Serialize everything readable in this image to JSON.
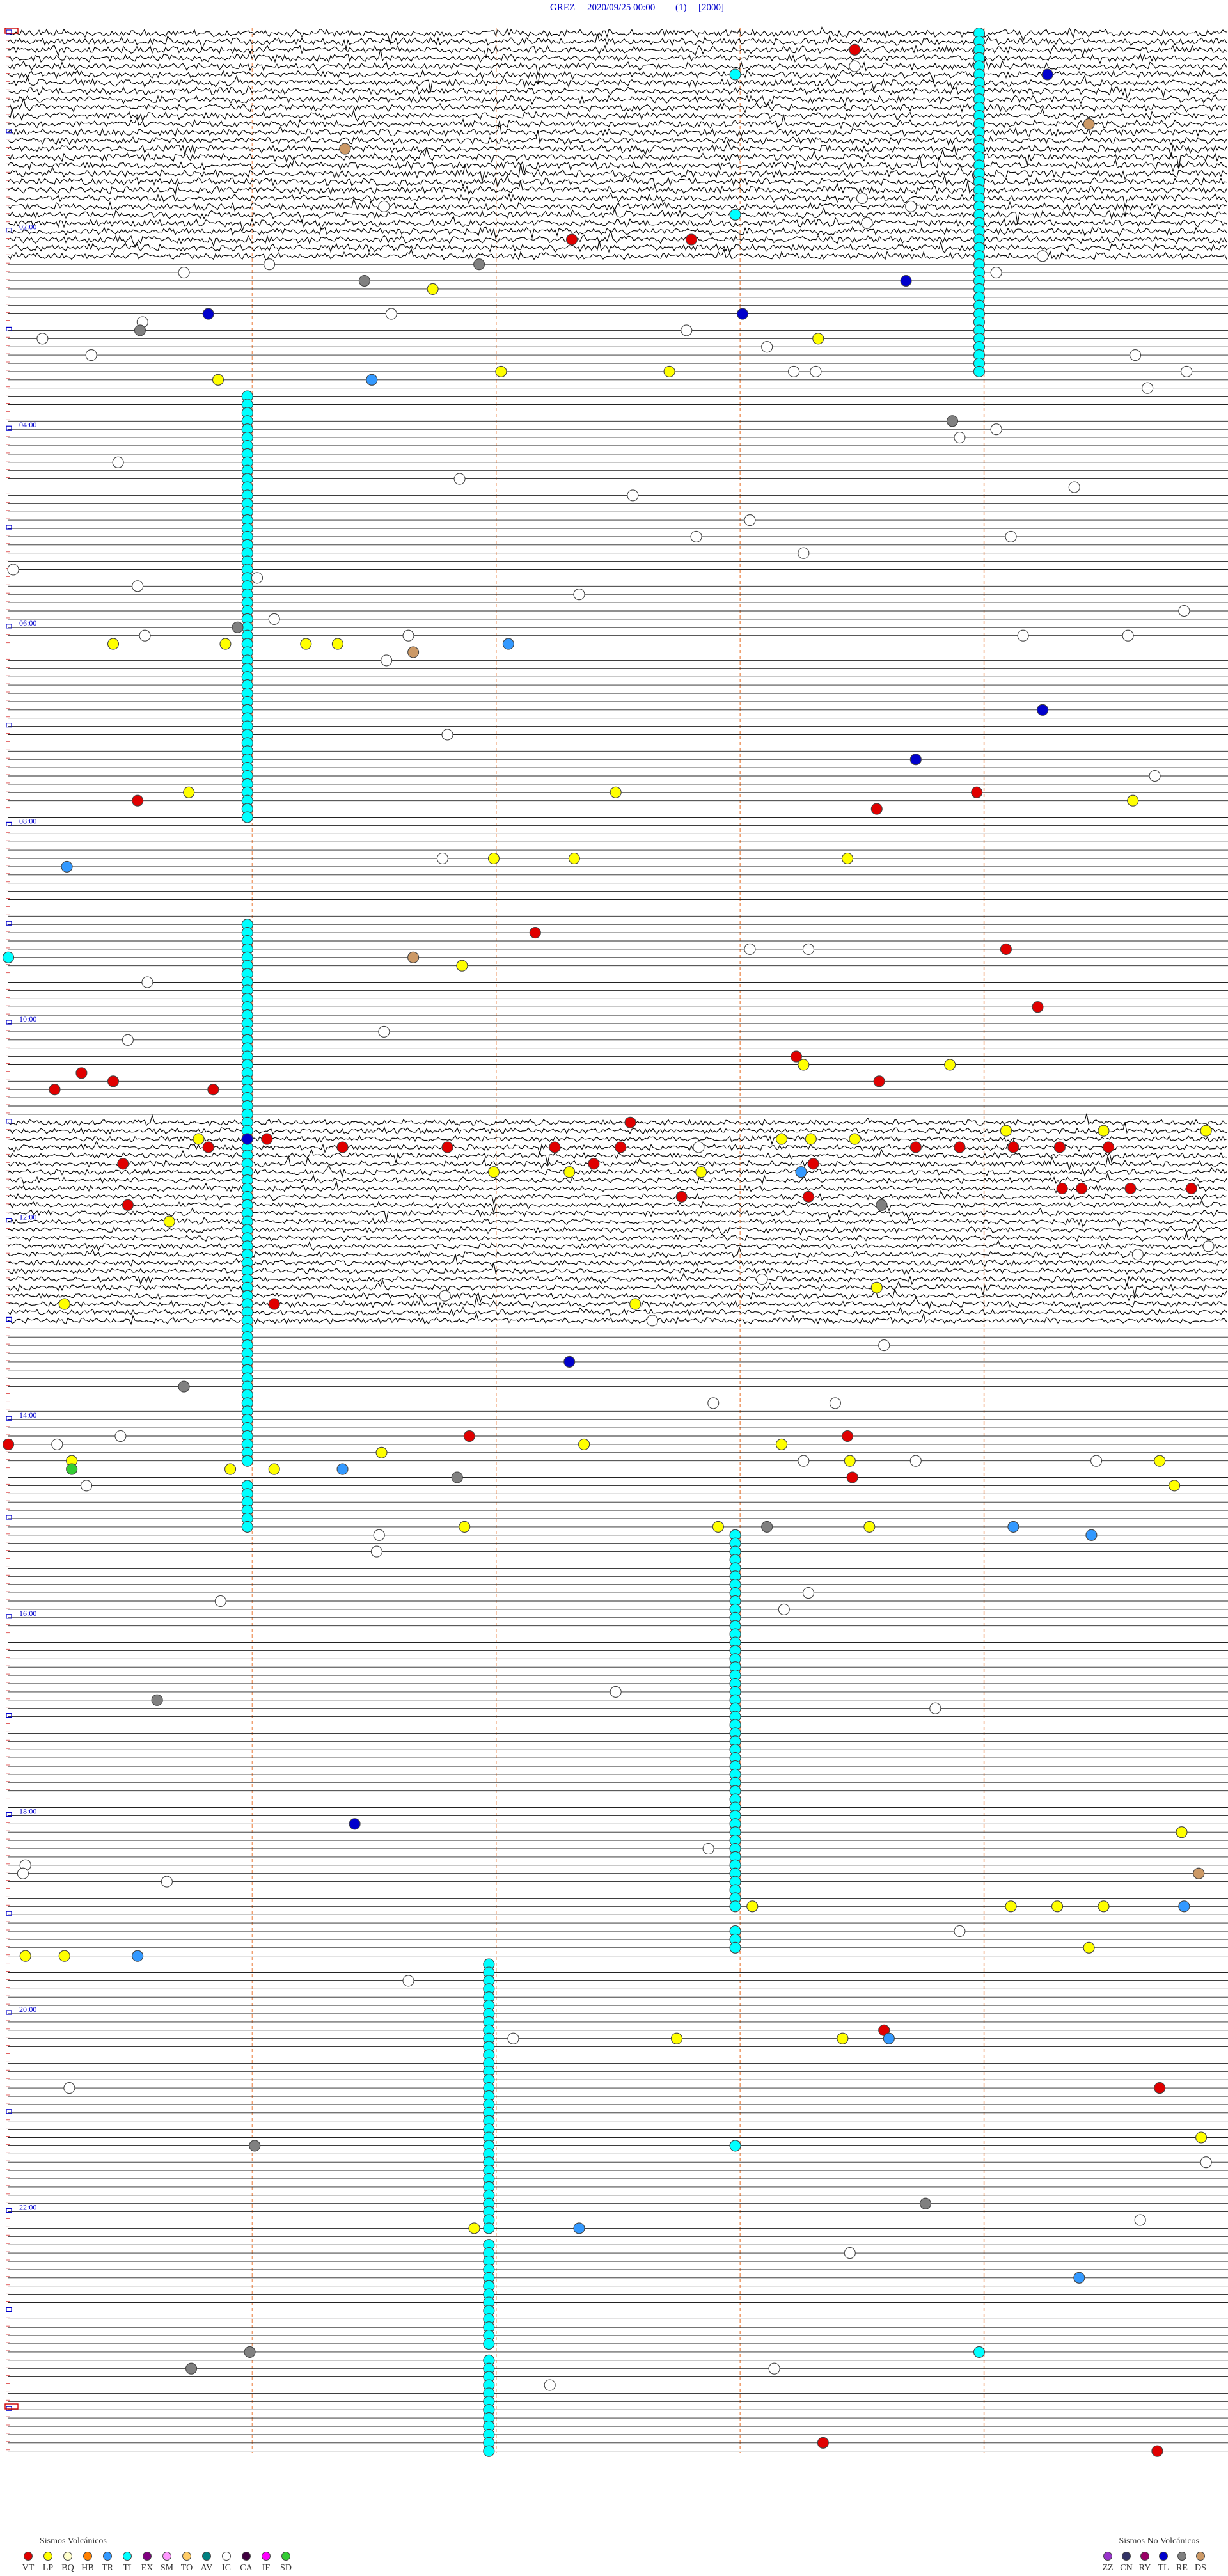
{
  "header": {
    "station": "GREZ",
    "datetime": "2020/09/25 00:00",
    "channel": "(1)",
    "scale": "[2000]"
  },
  "hour_labels": [
    "02:00",
    "04:00",
    "06:00",
    "08:00",
    "10:00",
    "12:00",
    "14:00",
    "16:00",
    "18:00",
    "20:00",
    "22:00"
  ],
  "legend": {
    "volcanic": {
      "title": "Sismos Volcánicos",
      "items": [
        {
          "code": "VT",
          "color": "#e00000"
        },
        {
          "code": "LP",
          "color": "#ffff00"
        },
        {
          "code": "BQ",
          "color": "#ffffcc"
        },
        {
          "code": "HB",
          "color": "#ff8000"
        },
        {
          "code": "TR",
          "color": "#3399ff"
        },
        {
          "code": "TI",
          "color": "#00ffff"
        },
        {
          "code": "EX",
          "color": "#800080"
        },
        {
          "code": "SM",
          "color": "#ff99ff"
        },
        {
          "code": "TO",
          "color": "#ffcc66"
        },
        {
          "code": "AV",
          "color": "#008080"
        },
        {
          "code": "IC",
          "color": "#ffffff"
        },
        {
          "code": "CA",
          "color": "#400040"
        },
        {
          "code": "IF",
          "color": "#ff00ff"
        },
        {
          "code": "SD",
          "color": "#33cc33"
        }
      ]
    },
    "nonvolcanic": {
      "title": "Sismos No Volcánicos",
      "items": [
        {
          "code": "ZZ",
          "color": "#9933cc"
        },
        {
          "code": "CN",
          "color": "#333366"
        },
        {
          "code": "RY",
          "color": "#990066"
        },
        {
          "code": "TL",
          "color": "#0000cc"
        },
        {
          "code": "RE",
          "color": "#808080"
        },
        {
          "code": "DS",
          "color": "#cc9966"
        }
      ]
    }
  },
  "sequences": {
    "TI": [
      [
        3.98,
        0,
        41
      ],
      [
        0.98,
        44,
        95
      ],
      [
        0.98,
        108,
        173
      ],
      [
        0.98,
        176,
        181
      ],
      [
        2.98,
        182,
        227
      ],
      [
        2.98,
        230,
        232
      ],
      [
        1.97,
        234,
        266
      ],
      [
        1.97,
        268,
        280
      ],
      [
        1.97,
        282,
        293
      ]
    ]
  },
  "events": {
    "VT": [
      [
        2,
        3.47
      ],
      [
        25,
        2.31
      ],
      [
        25,
        2.8
      ],
      [
        93,
        0.53
      ],
      [
        94,
        3.56
      ],
      [
        92,
        3.97
      ],
      [
        109,
        2.16
      ],
      [
        111,
        4.09
      ],
      [
        118,
        4.22
      ],
      [
        124,
        3.23
      ],
      [
        126,
        0.3
      ],
      [
        127,
        0.43
      ],
      [
        128,
        0.19
      ],
      [
        128,
        0.84
      ],
      [
        127,
        3.57
      ],
      [
        132,
        2.55
      ],
      [
        154,
        1.09
      ],
      [
        170,
        1.89
      ],
      [
        170,
        3.44
      ],
      [
        175,
        3.46
      ],
      [
        242,
        3.59
      ],
      [
        249,
        4.72
      ],
      [
        292,
        3.34
      ],
      [
        293,
        4.71
      ],
      [
        171,
        0.0
      ],
      [
        137,
        3.3
      ],
      [
        137,
        0.47
      ],
      [
        142,
        0.49
      ],
      [
        141,
        2.76
      ],
      [
        141,
        3.28
      ],
      [
        137,
        2.4
      ],
      [
        135,
        0.82
      ],
      [
        135,
        1.37
      ],
      [
        135,
        1.8
      ],
      [
        135,
        2.24
      ],
      [
        135,
        2.51
      ],
      [
        135,
        3.72
      ],
      [
        135,
        3.9
      ],
      [
        135,
        4.12
      ],
      [
        135,
        4.31
      ],
      [
        135,
        4.51
      ],
      [
        140,
        4.32
      ],
      [
        140,
        4.4
      ],
      [
        140,
        4.6
      ],
      [
        140,
        4.85
      ],
      [
        134,
        1.06
      ]
    ],
    "LP": [
      [
        31,
        1.74
      ],
      [
        37,
        3.32
      ],
      [
        42,
        0.86
      ],
      [
        41,
        2.02
      ],
      [
        41,
        2.71
      ],
      [
        74,
        0.43
      ],
      [
        74,
        0.89
      ],
      [
        74,
        1.22
      ],
      [
        74,
        1.35
      ],
      [
        92,
        0.74
      ],
      [
        92,
        2.49
      ],
      [
        93,
        4.61
      ],
      [
        100,
        1.99
      ],
      [
        100,
        2.32
      ],
      [
        100,
        3.44
      ],
      [
        113,
        1.86
      ],
      [
        125,
        3.26
      ],
      [
        125,
        3.86
      ],
      [
        133,
        4.09
      ],
      [
        133,
        4.49
      ],
      [
        133,
        4.91
      ],
      [
        134,
        0.78
      ],
      [
        134,
        3.17
      ],
      [
        134,
        3.29
      ],
      [
        134,
        3.47
      ],
      [
        138,
        1.99
      ],
      [
        138,
        2.3
      ],
      [
        138,
        2.84
      ],
      [
        144,
        0.66
      ],
      [
        152,
        3.56
      ],
      [
        154,
        0.23
      ],
      [
        154,
        2.57
      ],
      [
        172,
        1.53
      ],
      [
        171,
        2.36
      ],
      [
        171,
        3.17
      ],
      [
        173,
        3.45
      ],
      [
        173,
        4.72
      ],
      [
        176,
        4.78
      ],
      [
        174,
        0.91
      ],
      [
        174,
        1.09
      ],
      [
        173,
        0.26
      ],
      [
        181,
        1.87
      ],
      [
        181,
        2.91
      ],
      [
        181,
        3.53
      ],
      [
        218,
        4.81
      ],
      [
        227,
        3.05
      ],
      [
        227,
        4.11
      ],
      [
        227,
        4.3
      ],
      [
        227,
        4.49
      ],
      [
        232,
        4.43
      ],
      [
        233,
        0.07
      ],
      [
        233,
        0.23
      ],
      [
        243,
        2.74
      ],
      [
        243,
        3.42
      ],
      [
        255,
        4.89
      ],
      [
        266,
        1.91
      ]
    ],
    "IC": [
      [
        29,
        0.72
      ],
      [
        28,
        1.07
      ],
      [
        35,
        0.55
      ],
      [
        34,
        1.57
      ],
      [
        37,
        0.14
      ],
      [
        39,
        0.34
      ],
      [
        36,
        2.78
      ],
      [
        38,
        3.11
      ],
      [
        41,
        3.22
      ],
      [
        41,
        3.31
      ],
      [
        39,
        4.62
      ],
      [
        41,
        4.83
      ],
      [
        43,
        4.67
      ],
      [
        29,
        4.05
      ],
      [
        27,
        4.24
      ],
      [
        52,
        0.45
      ],
      [
        54,
        1.85
      ],
      [
        56,
        2.56
      ],
      [
        55,
        4.37
      ],
      [
        59,
        3.04
      ],
      [
        61,
        2.82
      ],
      [
        61,
        4.11
      ],
      [
        63,
        3.26
      ],
      [
        67,
        0.53
      ],
      [
        65,
        0.02
      ],
      [
        66,
        1.02
      ],
      [
        68,
        2.34
      ],
      [
        70,
        4.82
      ],
      [
        71,
        1.09
      ],
      [
        73,
        0.56
      ],
      [
        73,
        1.64
      ],
      [
        73,
        4.16
      ],
      [
        73,
        4.59
      ],
      [
        76,
        1.55
      ],
      [
        85,
        1.8
      ],
      [
        90,
        4.7
      ],
      [
        100,
        1.78
      ],
      [
        111,
        3.04
      ],
      [
        111,
        3.28
      ],
      [
        115,
        0.57
      ],
      [
        121,
        1.54
      ],
      [
        122,
        0.49
      ],
      [
        135,
        2.83
      ],
      [
        148,
        4.63
      ],
      [
        147,
        4.92
      ],
      [
        151,
        3.09
      ],
      [
        153,
        1.79
      ],
      [
        156,
        2.64
      ],
      [
        159,
        3.59
      ],
      [
        166,
        2.89
      ],
      [
        166,
        3.39
      ],
      [
        170,
        0.46
      ],
      [
        171,
        0.2
      ],
      [
        173,
        3.26
      ],
      [
        173,
        3.72
      ],
      [
        173,
        4.46
      ],
      [
        176,
        0.32
      ],
      [
        182,
        1.52
      ],
      [
        184,
        1.51
      ],
      [
        189,
        3.28
      ],
      [
        191,
        3.18
      ],
      [
        190,
        0.87
      ],
      [
        201,
        2.49
      ],
      [
        203,
        3.8
      ],
      [
        220,
        2.87
      ],
      [
        222,
        0.07
      ],
      [
        223,
        0.06
      ],
      [
        224,
        0.65
      ],
      [
        230,
        3.9
      ],
      [
        236,
        1.64
      ],
      [
        243,
        2.07
      ],
      [
        249,
        0.25
      ],
      [
        258,
        4.91
      ],
      [
        265,
        4.64
      ],
      [
        269,
        3.45
      ],
      [
        285,
        2.22
      ],
      [
        283,
        3.14
      ],
      [
        49,
        3.9
      ],
      [
        48,
        4.05
      ],
      [
        20,
        3.5
      ],
      [
        21,
        3.7
      ],
      [
        21,
        1.54
      ],
      [
        4,
        3.47
      ],
      [
        23,
        3.52
      ]
    ],
    "TR": [
      [
        42,
        1.49
      ],
      [
        74,
        2.05
      ],
      [
        101,
        0.24
      ],
      [
        138,
        3.25
      ],
      [
        174,
        1.37
      ],
      [
        181,
        4.12
      ],
      [
        182,
        4.44
      ],
      [
        227,
        4.82
      ],
      [
        233,
        0.53
      ],
      [
        243,
        3.61
      ],
      [
        266,
        2.34
      ],
      [
        272,
        4.39
      ]
    ],
    "TI": [
      [
        5,
        2.98
      ],
      [
        22,
        2.98
      ],
      [
        256,
        2.98
      ],
      [
        281,
        3.98
      ],
      [
        112,
        0.0
      ]
    ],
    "TL": [
      [
        5,
        4.26
      ],
      [
        30,
        3.68
      ],
      [
        34,
        0.82
      ],
      [
        34,
        3.01
      ],
      [
        82,
        4.24
      ],
      [
        88,
        3.72
      ],
      [
        161,
        2.3
      ],
      [
        217,
        1.42
      ],
      [
        134,
        0.98
      ]
    ],
    "RE": [
      [
        30,
        1.46
      ],
      [
        36,
        0.54
      ],
      [
        28,
        1.93
      ],
      [
        47,
        3.87
      ],
      [
        72,
        0.94
      ],
      [
        164,
        0.72
      ],
      [
        175,
        1.84
      ],
      [
        181,
        3.11
      ],
      [
        202,
        0.61
      ],
      [
        256,
        1.01
      ],
      [
        263,
        3.76
      ],
      [
        281,
        0.99
      ],
      [
        283,
        0.75
      ],
      [
        142,
        3.58
      ]
    ],
    "DS": [
      [
        14,
        1.38
      ],
      [
        11,
        4.43
      ],
      [
        75,
        1.66
      ],
      [
        112,
        1.66
      ],
      [
        223,
        4.88
      ]
    ],
    "SD": [
      [
        174,
        0.26
      ]
    ]
  }
}
